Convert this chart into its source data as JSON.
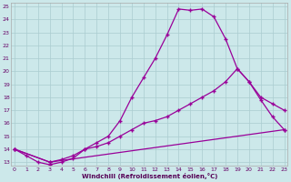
{
  "xlabel": "Windchill (Refroidissement éolien,°C)",
  "bg_color": "#cce8ea",
  "line_color": "#990099",
  "grid_color": "#aaccd0",
  "xmin": 0,
  "xmax": 23,
  "ymin": 13,
  "ymax": 25,
  "line1_x": [
    0,
    1,
    2,
    3,
    4,
    5,
    6,
    7,
    8,
    9,
    10,
    11,
    12,
    13,
    14,
    15,
    16,
    17,
    18,
    19,
    20,
    21,
    22,
    23
  ],
  "line1_y": [
    14.0,
    13.5,
    13.0,
    12.8,
    13.0,
    13.3,
    14.0,
    14.5,
    15.0,
    16.2,
    18.0,
    19.5,
    21.0,
    22.8,
    24.8,
    24.7,
    24.8,
    24.2,
    22.5,
    20.2,
    19.2,
    17.8,
    16.5,
    15.5
  ],
  "line2_x": [
    0,
    3,
    4,
    5,
    6,
    7,
    8,
    9,
    10,
    11,
    12,
    13,
    14,
    15,
    16,
    17,
    18,
    19,
    20,
    21,
    22,
    23
  ],
  "line2_y": [
    14.0,
    13.0,
    13.2,
    13.5,
    14.0,
    14.2,
    14.5,
    15.0,
    15.5,
    16.0,
    16.2,
    16.5,
    17.0,
    17.5,
    18.0,
    18.5,
    19.2,
    20.2,
    19.2,
    18.0,
    17.5,
    17.0
  ],
  "line3_x": [
    0,
    3,
    23
  ],
  "line3_y": [
    14.0,
    13.0,
    15.5
  ]
}
